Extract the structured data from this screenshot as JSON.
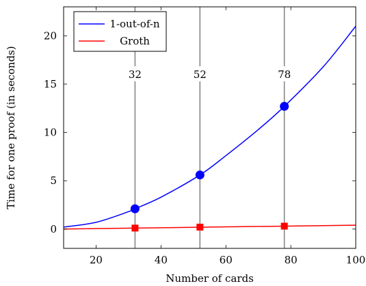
{
  "chart_data": {
    "type": "line",
    "title": "",
    "xlabel": "Number of cards",
    "ylabel": "Time for one proof (in seconds)",
    "xlim": [
      10,
      100
    ],
    "ylim": [
      -2,
      23
    ],
    "x_ticks": [
      20,
      40,
      60,
      80,
      100
    ],
    "y_ticks": [
      0,
      5,
      10,
      15,
      20
    ],
    "grid": false,
    "legend_position": "top-left",
    "series": [
      {
        "name": "1-out-of-n",
        "color": "#0000ff",
        "marker": "circle",
        "x": [
          10,
          20,
          30,
          32,
          40,
          52,
          60,
          70,
          78,
          90,
          100
        ],
        "y": [
          0.2,
          0.7,
          1.8,
          2.1,
          3.3,
          5.6,
          7.6,
          10.3,
          12.7,
          16.8,
          21.0
        ],
        "markers": [
          {
            "x": 32,
            "y": 2.1
          },
          {
            "x": 52,
            "y": 5.6
          },
          {
            "x": 78,
            "y": 12.7
          }
        ]
      },
      {
        "name": "Groth",
        "color": "#ff0000",
        "marker": "square",
        "x": [
          10,
          100
        ],
        "y": [
          0.0,
          0.4
        ],
        "markers": [
          {
            "x": 32,
            "y": 0.1
          },
          {
            "x": 52,
            "y": 0.2
          },
          {
            "x": 78,
            "y": 0.3
          }
        ]
      }
    ],
    "reference_lines": [
      {
        "x": 32,
        "label": "32",
        "color": "#808080"
      },
      {
        "x": 52,
        "label": "52",
        "color": "#808080"
      },
      {
        "x": 78,
        "label": "78",
        "color": "#808080"
      }
    ],
    "reference_label_y": 16
  }
}
